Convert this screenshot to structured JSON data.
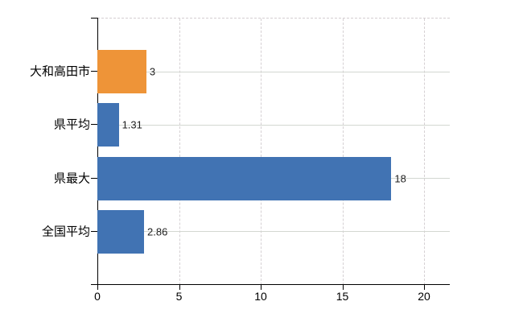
{
  "chart_data": {
    "type": "bar",
    "orientation": "horizontal",
    "title": "",
    "xlabel": "",
    "ylabel": "",
    "categories": [
      "大和高田市",
      "県平均",
      "県最大",
      "全国平均"
    ],
    "values": [
      3,
      1.31,
      18,
      2.86
    ],
    "value_labels": [
      "3",
      "1.31",
      "18",
      "2.86"
    ],
    "bar_colors": [
      "#ee9438",
      "#4173b3",
      "#4173b3",
      "#4173b3"
    ],
    "x_ticks": [
      0,
      5,
      10,
      15,
      20
    ],
    "x_tick_labels": [
      "0",
      "5",
      "10",
      "15",
      "20"
    ],
    "xlim": [
      0,
      21.6
    ],
    "grid": "vertical-dashed-and-horizontal-category-lines",
    "legend_position": "none"
  },
  "colors": {
    "background": "#ffffff",
    "axis": "#000000",
    "vertical_gridline": "#d5d0d3",
    "horizontal_rowline": "#d3d7d1",
    "top_border_dashed": "#d5ced2",
    "value_text": "#1f1f1f",
    "category_text": "#000000",
    "bar_orange": "#ee9438",
    "bar_blue": "#4173b3"
  }
}
